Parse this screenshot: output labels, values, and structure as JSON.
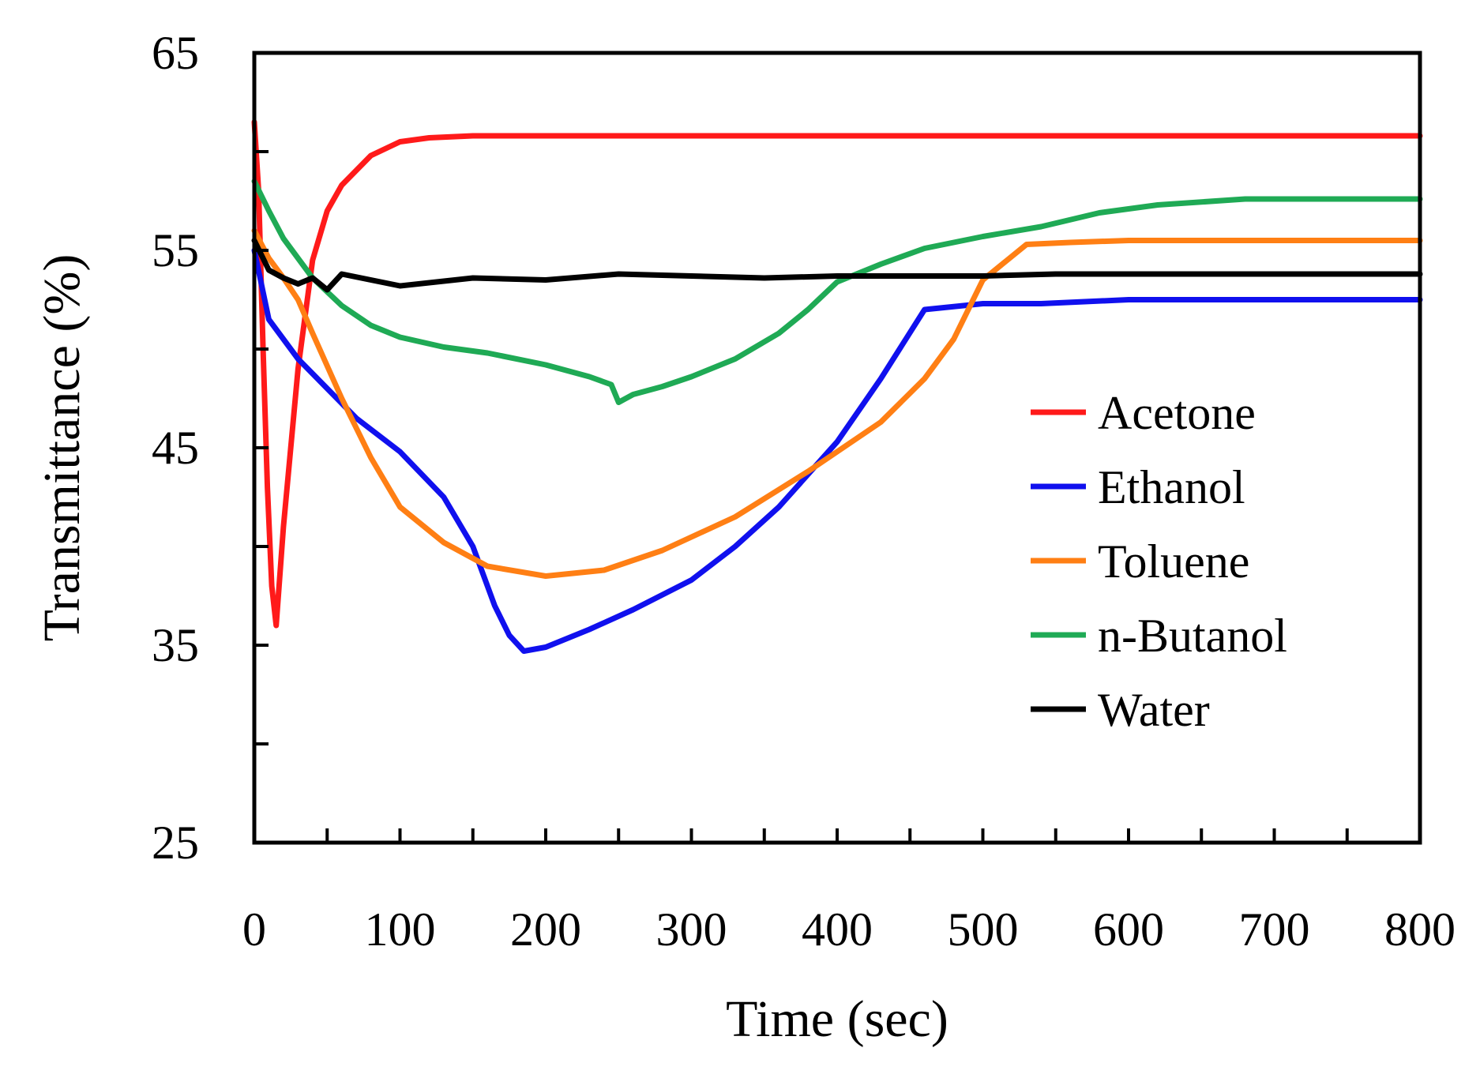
{
  "chart_data": {
    "type": "line",
    "title": "",
    "xlabel": "Time (sec)",
    "ylabel": "Transmittance (%)",
    "xlim": [
      0,
      800
    ],
    "ylim": [
      25,
      65
    ],
    "xticks": [
      0,
      100,
      200,
      300,
      400,
      500,
      600,
      700,
      800
    ],
    "yticks": [
      25,
      35,
      45,
      55,
      65
    ],
    "y_minor_ticks": [
      30,
      40,
      50,
      60
    ],
    "x_minor_ticks": [
      50,
      150,
      250,
      350,
      450,
      550,
      650,
      750
    ],
    "grid": false,
    "legend_position": "right",
    "series": [
      {
        "name": "Acetone",
        "color": "#ff1a1a",
        "x": [
          0,
          3,
          6,
          9,
          12,
          15,
          20,
          30,
          40,
          50,
          60,
          80,
          100,
          120,
          150,
          200,
          240,
          300,
          400,
          500,
          600,
          700,
          800
        ],
        "y": [
          61.5,
          58,
          50,
          43,
          38,
          36,
          41,
          49,
          54.5,
          57,
          58.3,
          59.8,
          60.5,
          60.7,
          60.8,
          60.8,
          60.8,
          60.8,
          60.8,
          60.8,
          60.8,
          60.8,
          60.8
        ]
      },
      {
        "name": "Ethanol",
        "color": "#1010ee",
        "x": [
          0,
          10,
          20,
          30,
          50,
          70,
          100,
          130,
          150,
          165,
          175,
          185,
          200,
          230,
          260,
          300,
          330,
          360,
          400,
          430,
          460,
          500,
          540,
          600,
          700,
          800
        ],
        "y": [
          55,
          51.5,
          50.5,
          49.5,
          48,
          46.5,
          44.8,
          42.5,
          40,
          37,
          35.5,
          34.7,
          34.9,
          35.8,
          36.8,
          38.3,
          40,
          42,
          45.3,
          48.5,
          52,
          52.3,
          52.3,
          52.5,
          52.5,
          52.5
        ]
      },
      {
        "name": "Toluene",
        "color": "#ff7f14",
        "x": [
          0,
          10,
          20,
          30,
          40,
          60,
          80,
          100,
          130,
          160,
          200,
          240,
          280,
          330,
          380,
          430,
          460,
          480,
          500,
          530,
          560,
          600,
          700,
          800
        ],
        "y": [
          56,
          54.6,
          53.6,
          52.5,
          50.8,
          47.5,
          44.5,
          42,
          40.2,
          39,
          38.5,
          38.8,
          39.8,
          41.5,
          43.8,
          46.3,
          48.5,
          50.5,
          53.5,
          55.3,
          55.4,
          55.5,
          55.5,
          55.5
        ]
      },
      {
        "name": "n-Butanol",
        "color": "#1faa55",
        "x": [
          0,
          10,
          20,
          40,
          60,
          80,
          100,
          130,
          160,
          200,
          230,
          245,
          250,
          260,
          280,
          300,
          330,
          360,
          380,
          400,
          430,
          460,
          500,
          540,
          580,
          620,
          680,
          740,
          800
        ],
        "y": [
          58.5,
          57,
          55.6,
          53.6,
          52.2,
          51.2,
          50.6,
          50.1,
          49.8,
          49.2,
          48.6,
          48.2,
          47.3,
          47.7,
          48.1,
          48.6,
          49.5,
          50.8,
          52,
          53.4,
          54.3,
          55.1,
          55.7,
          56.2,
          56.9,
          57.3,
          57.6,
          57.6,
          57.6
        ]
      },
      {
        "name": "Water",
        "color": "#000000",
        "x": [
          0,
          10,
          20,
          30,
          40,
          50,
          60,
          80,
          100,
          150,
          200,
          250,
          300,
          350,
          400,
          450,
          500,
          550,
          600,
          650,
          700,
          750,
          800
        ],
        "y": [
          55.5,
          54,
          53.6,
          53.3,
          53.6,
          53,
          53.8,
          53.5,
          53.2,
          53.6,
          53.5,
          53.8,
          53.7,
          53.6,
          53.7,
          53.7,
          53.7,
          53.8,
          53.8,
          53.8,
          53.8,
          53.8,
          53.8
        ]
      }
    ]
  }
}
